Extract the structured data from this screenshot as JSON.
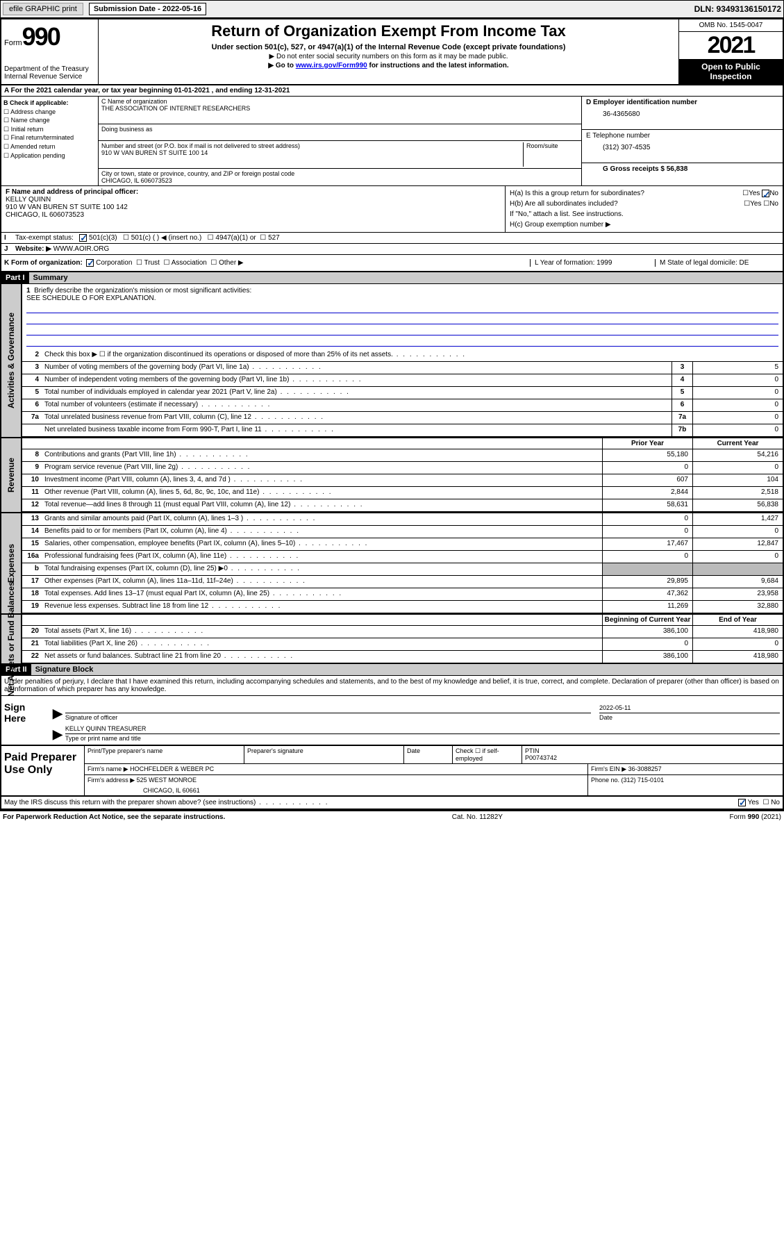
{
  "topbar": {
    "efile": "efile GRAPHIC print",
    "sub_label": "Submission Date - 2022-05-16",
    "dln": "DLN: 93493136150172"
  },
  "header": {
    "form_label": "Form",
    "form_no": "990",
    "dept": "Department of the Treasury",
    "irs": "Internal Revenue Service",
    "title": "Return of Organization Exempt From Income Tax",
    "sub": "Under section 501(c), 527, or 4947(a)(1) of the Internal Revenue Code (except private foundations)",
    "note1": "▶ Do not enter social security numbers on this form as it may be made public.",
    "note2_a": "▶ Go to ",
    "note2_link": "www.irs.gov/Form990",
    "note2_b": " for instructions and the latest information.",
    "omb": "OMB No. 1545-0047",
    "year": "2021",
    "otp": "Open to Public Inspection"
  },
  "row_a": "A For the 2021 calendar year, or tax year beginning 01-01-2021   , and ending 12-31-2021",
  "col_b": {
    "hdr": "B Check if applicable:",
    "items": [
      "Address change",
      "Name change",
      "Initial return",
      "Final return/terminated",
      "Amended return",
      "Application pending"
    ]
  },
  "col_c": {
    "name_lbl": "C Name of organization",
    "name": "THE ASSOCIATION OF INTERNET RESEARCHERS",
    "dba_lbl": "Doing business as",
    "street_lbl": "Number and street (or P.O. box if mail is not delivered to street address)",
    "room_lbl": "Room/suite",
    "street": "910 W VAN BUREN ST SUITE 100 14",
    "city_lbl": "City or town, state or province, country, and ZIP or foreign postal code",
    "city": "CHICAGO, IL  606073523"
  },
  "col_d": {
    "ein_lbl": "D Employer identification number",
    "ein": "36-4365680",
    "tel_lbl": "E Telephone number",
    "tel": "(312) 307-4535",
    "gross_lbl": "G Gross receipts $ 56,838"
  },
  "col_f": {
    "lbl": "F Name and address of principal officer:",
    "name": "KELLY QUINN",
    "addr1": "910 W VAN BUREN ST SUITE 100 142",
    "addr2": "CHICAGO, IL  606073523"
  },
  "col_h": {
    "ha": "H(a)  Is this a group return for subordinates?",
    "hb": "H(b)  Are all subordinates included?",
    "hb_note": "If \"No,\" attach a list. See instructions.",
    "hc": "H(c)  Group exemption number ▶"
  },
  "row_i": {
    "lbl": "I",
    "text": "Tax-exempt status:",
    "opts": [
      "501(c)(3)",
      "501(c) (  ) ◀ (insert no.)",
      "4947(a)(1) or",
      "527"
    ]
  },
  "row_j": {
    "lbl": "J",
    "text": "Website: ▶",
    "val": "WWW.AOIR.ORG"
  },
  "row_k": {
    "k": "K Form of organization:",
    "k_opts": [
      "Corporation",
      "Trust",
      "Association",
      "Other ▶"
    ],
    "l": "L Year of formation: 1999",
    "m": "M State of legal domicile: DE"
  },
  "part1": {
    "hdr": "Part I",
    "title": "Summary"
  },
  "mission": {
    "num": "1",
    "lbl": "Briefly describe the organization's mission or most significant activities:",
    "text": "SEE SCHEDULE O FOR EXPLANATION."
  },
  "gov_lines": [
    {
      "n": "2",
      "d": "Check this box ▶ ☐ if the organization discontinued its operations or disposed of more than 25% of its net assets."
    },
    {
      "n": "3",
      "d": "Number of voting members of the governing body (Part VI, line 1a)",
      "box": "3",
      "v": "5"
    },
    {
      "n": "4",
      "d": "Number of independent voting members of the governing body (Part VI, line 1b)",
      "box": "4",
      "v": "0"
    },
    {
      "n": "5",
      "d": "Total number of individuals employed in calendar year 2021 (Part V, line 2a)",
      "box": "5",
      "v": "0"
    },
    {
      "n": "6",
      "d": "Total number of volunteers (estimate if necessary)",
      "box": "6",
      "v": "0"
    },
    {
      "n": "7a",
      "d": "Total unrelated business revenue from Part VIII, column (C), line 12",
      "box": "7a",
      "v": "0"
    },
    {
      "n": "",
      "d": "Net unrelated business taxable income from Form 990-T, Part I, line 11",
      "box": "7b",
      "v": "0"
    }
  ],
  "col_hdr": {
    "prior": "Prior Year",
    "curr": "Current Year"
  },
  "rev_lines": [
    {
      "n": "8",
      "d": "Contributions and grants (Part VIII, line 1h)",
      "p": "55,180",
      "c": "54,216"
    },
    {
      "n": "9",
      "d": "Program service revenue (Part VIII, line 2g)",
      "p": "0",
      "c": "0"
    },
    {
      "n": "10",
      "d": "Investment income (Part VIII, column (A), lines 3, 4, and 7d )",
      "p": "607",
      "c": "104"
    },
    {
      "n": "11",
      "d": "Other revenue (Part VIII, column (A), lines 5, 6d, 8c, 9c, 10c, and 11e)",
      "p": "2,844",
      "c": "2,518"
    },
    {
      "n": "12",
      "d": "Total revenue—add lines 8 through 11 (must equal Part VIII, column (A), line 12)",
      "p": "58,631",
      "c": "56,838"
    }
  ],
  "exp_lines": [
    {
      "n": "13",
      "d": "Grants and similar amounts paid (Part IX, column (A), lines 1–3 )",
      "p": "0",
      "c": "1,427"
    },
    {
      "n": "14",
      "d": "Benefits paid to or for members (Part IX, column (A), line 4)",
      "p": "0",
      "c": "0"
    },
    {
      "n": "15",
      "d": "Salaries, other compensation, employee benefits (Part IX, column (A), lines 5–10)",
      "p": "17,467",
      "c": "12,847"
    },
    {
      "n": "16a",
      "d": "Professional fundraising fees (Part IX, column (A), line 11e)",
      "p": "0",
      "c": "0"
    },
    {
      "n": "b",
      "d": "Total fundraising expenses (Part IX, column (D), line 25) ▶0",
      "p": "shade",
      "c": "shade"
    },
    {
      "n": "17",
      "d": "Other expenses (Part IX, column (A), lines 11a–11d, 11f–24e)",
      "p": "29,895",
      "c": "9,684"
    },
    {
      "n": "18",
      "d": "Total expenses. Add lines 13–17 (must equal Part IX, column (A), line 25)",
      "p": "47,362",
      "c": "23,958"
    },
    {
      "n": "19",
      "d": "Revenue less expenses. Subtract line 18 from line 12",
      "p": "11,269",
      "c": "32,880"
    }
  ],
  "na_hdr": {
    "beg": "Beginning of Current Year",
    "end": "End of Year"
  },
  "na_lines": [
    {
      "n": "20",
      "d": "Total assets (Part X, line 16)",
      "p": "386,100",
      "c": "418,980"
    },
    {
      "n": "21",
      "d": "Total liabilities (Part X, line 26)",
      "p": "0",
      "c": "0"
    },
    {
      "n": "22",
      "d": "Net assets or fund balances. Subtract line 21 from line 20",
      "p": "386,100",
      "c": "418,980"
    }
  ],
  "part2": {
    "hdr": "Part II",
    "title": "Signature Block"
  },
  "sig": {
    "perjury": "Under penalties of perjury, I declare that I have examined this return, including accompanying schedules and statements, and to the best of my knowledge and belief, it is true, correct, and complete. Declaration of preparer (other than officer) is based on all information of which preparer has any knowledge.",
    "here": "Sign Here",
    "officer_lbl": "Signature of officer",
    "date_lbl": "Date",
    "date": "2022-05-11",
    "name": "KELLY QUINN  TREASURER",
    "name_lbl": "Type or print name and title"
  },
  "prep": {
    "title": "Paid Preparer Use Only",
    "r1": {
      "a": "Print/Type preparer's name",
      "b": "Preparer's signature",
      "c": "Date",
      "d": "Check ☐ if self-employed",
      "e_lbl": "PTIN",
      "e": "P00743742"
    },
    "r2": {
      "a": "Firm's name    ▶ HOCHFELDER & WEBER PC",
      "b": "Firm's EIN ▶ 36-3088257"
    },
    "r3": {
      "a": "Firm's address ▶ 525 WEST MONROE",
      "a2": "CHICAGO, IL  60661",
      "b": "Phone no. (312) 715-0101"
    }
  },
  "footer": {
    "discuss": "May the IRS discuss this return with the preparer shown above? (see instructions)",
    "paperwork": "For Paperwork Reduction Act Notice, see the separate instructions.",
    "cat": "Cat. No. 11282Y",
    "form": "Form 990 (2021)"
  },
  "vside": {
    "gov": "Activities & Governance",
    "rev": "Revenue",
    "exp": "Expenses",
    "na": "Net Assets or Fund Balances"
  }
}
